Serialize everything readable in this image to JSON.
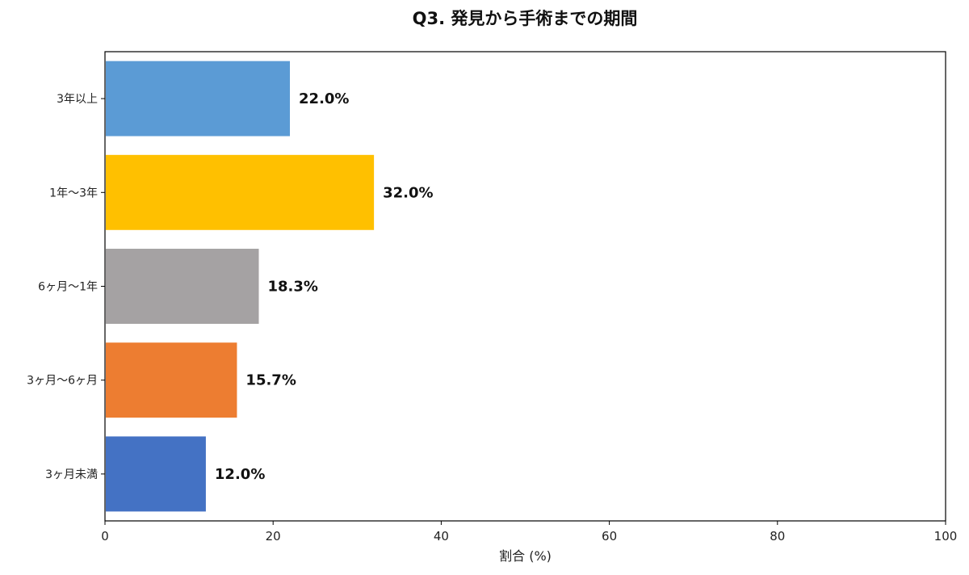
{
  "chart_data": {
    "type": "bar",
    "orientation": "horizontal",
    "title": "Q3. 発見から手術までの期間",
    "xlabel": "割合 (%)",
    "ylabel": "",
    "xlim": [
      0,
      100
    ],
    "x_ticks": [
      0,
      20,
      40,
      60,
      80,
      100
    ],
    "grid": false,
    "categories": [
      "3年以上",
      "1年〜3年",
      "6ヶ月〜1年",
      "3ヶ月〜6ヶ月",
      "3ヶ月未満"
    ],
    "values": [
      22.0,
      32.0,
      18.3,
      15.7,
      12.0
    ],
    "value_labels": [
      "22.0%",
      "32.0%",
      "18.3%",
      "15.7%",
      "12.0%"
    ],
    "colors": [
      "#5b9bd5",
      "#ffc000",
      "#a5a2a3",
      "#ed7d31",
      "#4472c4"
    ]
  }
}
